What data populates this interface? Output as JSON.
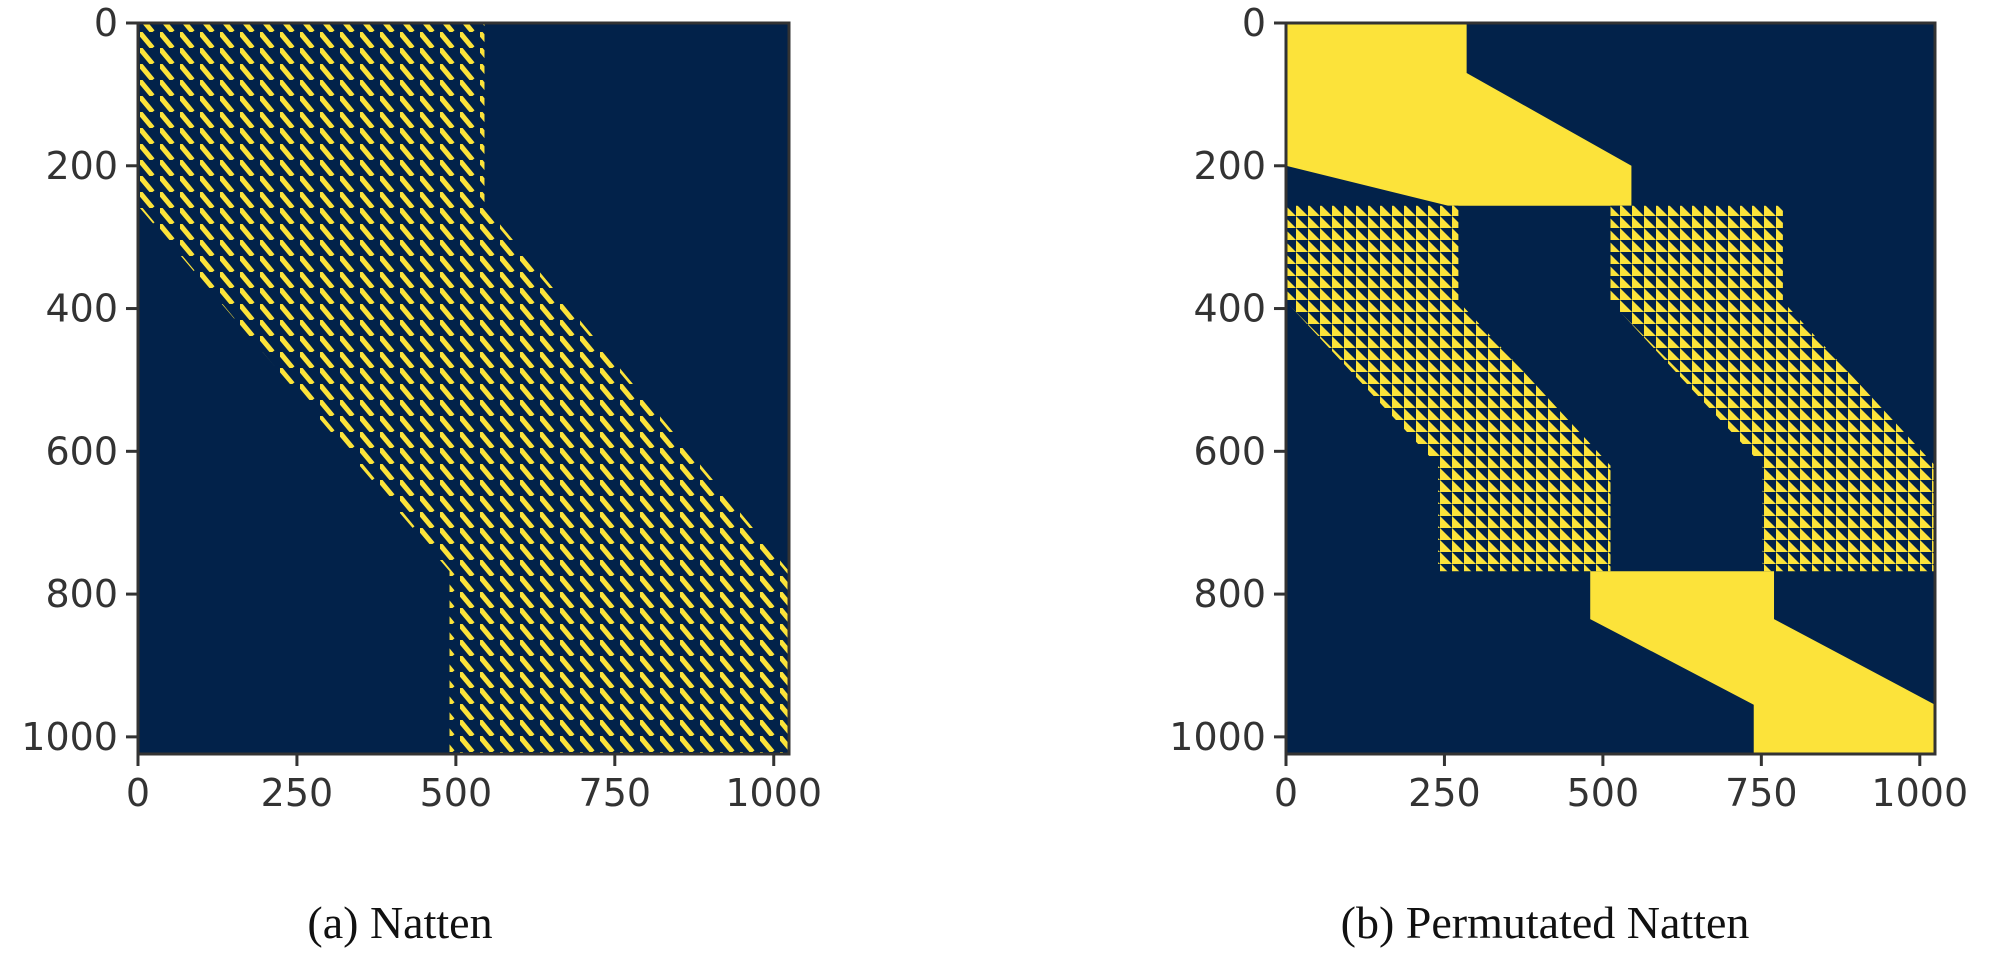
{
  "colors": {
    "background_cell": "#02224A",
    "active_cell": "#FCE33A",
    "axis": "#333333",
    "text": "#333333"
  },
  "chart_data": [
    {
      "type": "heatmap",
      "title": "",
      "caption": "(a) Natten",
      "xlabel": "",
      "ylabel": "",
      "xlim": [
        0,
        1024
      ],
      "ylim": [
        1024,
        0
      ],
      "y_inverted": true,
      "x_ticks": [
        "0",
        "250",
        "500",
        "750",
        "1000"
      ],
      "x_tick_values": [
        0,
        250,
        500,
        750,
        1000
      ],
      "y_ticks": [
        "0",
        "200",
        "400",
        "600",
        "800",
        "1000"
      ],
      "y_tick_values": [
        0,
        200,
        400,
        600,
        800,
        1000
      ],
      "values_description": "binary mask (1 = attended, 0 = masked)",
      "pattern": "fine stripes",
      "band": {
        "row_breaks": [
          0,
          256,
          768,
          1024
        ],
        "left_edge": [
          0,
          0,
          490,
          490
        ],
        "right_edge": [
          545,
          545,
          1024,
          1024
        ]
      }
    },
    {
      "type": "heatmap",
      "title": "",
      "caption": "(b) Permutated Natten",
      "xlabel": "",
      "ylabel": "",
      "xlim": [
        0,
        1024
      ],
      "ylim": [
        1024,
        0
      ],
      "y_inverted": true,
      "x_ticks": [
        "0",
        "250",
        "500",
        "750",
        "1000"
      ],
      "x_tick_values": [
        0,
        250,
        500,
        750,
        1000
      ],
      "y_ticks": [
        "0",
        "200",
        "400",
        "600",
        "800",
        "1000"
      ],
      "y_tick_values": [
        0,
        200,
        400,
        600,
        800,
        1000
      ],
      "values_description": "binary mask (1 = attended, 0 = masked)",
      "blocks": [
        {
          "rows": [
            0,
            256
          ],
          "pattern": "solid",
          "left_edge": [
            0,
            0,
            0,
            256
          ],
          "right_edge": [
            285,
            285,
            545,
            545
          ],
          "left_rows": [
            0,
            70,
            200,
            256
          ],
          "right_rows": [
            0,
            70,
            200,
            256
          ]
        },
        {
          "rows": [
            256,
            768
          ],
          "pattern": "checker",
          "left_edge": [
            0,
            0,
            240,
            240
          ],
          "right_edge": [
            272,
            272,
            512,
            512
          ],
          "left_rows": [
            256,
            390,
            620,
            768
          ],
          "right_rows": [
            256,
            390,
            620,
            768
          ]
        },
        {
          "rows": [
            256,
            768
          ],
          "pattern": "checker",
          "left_edge": [
            512,
            512,
            752,
            752
          ],
          "right_edge": [
            784,
            784,
            1024,
            1024
          ],
          "left_rows": [
            256,
            390,
            620,
            768
          ],
          "right_rows": [
            256,
            390,
            620,
            768
          ]
        },
        {
          "rows": [
            768,
            1024
          ],
          "pattern": "solid",
          "left_edge": [
            480,
            480,
            738,
            738
          ],
          "right_edge": [
            770,
            770,
            1024,
            1024
          ],
          "left_rows": [
            768,
            835,
            955,
            1024
          ],
          "right_rows": [
            768,
            835,
            955,
            1024
          ]
        }
      ]
    }
  ]
}
